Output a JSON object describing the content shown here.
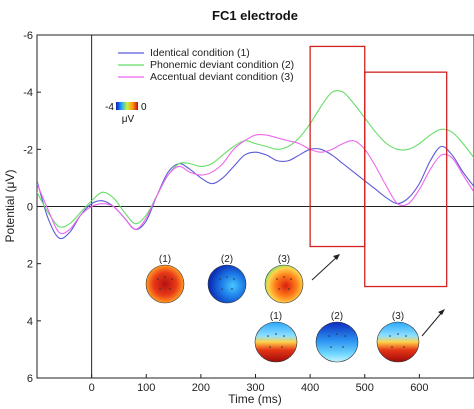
{
  "chart_data": {
    "type": "line",
    "title": "FC1 electrode",
    "xlabel": "Time (ms)",
    "ylabel": "Potential (μV)",
    "xlim": [
      -100,
      700
    ],
    "ylim": [
      -6,
      6
    ],
    "y_inverted": true,
    "x_ticks": [
      0,
      100,
      200,
      300,
      400,
      500,
      600
    ],
    "y_ticks": [
      -6,
      -4,
      -2,
      0,
      2,
      4,
      6
    ],
    "y_tick_labels": [
      "-6",
      "-4",
      "-2",
      "0",
      "2",
      "4",
      "6"
    ],
    "grid": false,
    "legend_position": "top-left",
    "series": [
      {
        "name": "Identical condition (1)",
        "color": "#5a5ad8",
        "x": [
          -100,
          -80,
          -60,
          -40,
          -20,
          0,
          20,
          40,
          60,
          80,
          100,
          120,
          140,
          160,
          180,
          200,
          220,
          240,
          260,
          280,
          300,
          320,
          340,
          360,
          380,
          400,
          420,
          440,
          460,
          480,
          500,
          520,
          540,
          560,
          580,
          600,
          620,
          640,
          660,
          680,
          700
        ],
        "y": [
          -0.9,
          0.4,
          1.1,
          0.9,
          0.3,
          -0.1,
          -0.2,
          0.0,
          0.4,
          0.8,
          0.5,
          -0.4,
          -1.2,
          -1.5,
          -1.3,
          -1.0,
          -0.8,
          -1.0,
          -1.4,
          -1.8,
          -1.9,
          -1.8,
          -1.6,
          -1.6,
          -1.8,
          -2.0,
          -2.0,
          -1.8,
          -1.5,
          -1.2,
          -0.9,
          -0.6,
          -0.3,
          -0.1,
          -0.3,
          -0.8,
          -1.6,
          -2.1,
          -1.8,
          -1.2,
          -0.7
        ]
      },
      {
        "name": "Phonemic deviant condition (2)",
        "color": "#66dd66",
        "x": [
          -100,
          -80,
          -60,
          -40,
          -20,
          0,
          20,
          40,
          60,
          80,
          100,
          120,
          140,
          160,
          180,
          200,
          220,
          240,
          260,
          280,
          300,
          320,
          340,
          360,
          380,
          400,
          420,
          440,
          460,
          480,
          500,
          520,
          540,
          560,
          580,
          600,
          620,
          640,
          660,
          680,
          700
        ],
        "y": [
          -0.5,
          0.2,
          0.7,
          0.6,
          0.2,
          -0.2,
          -0.5,
          -0.3,
          0.2,
          0.6,
          0.3,
          -0.4,
          -1.1,
          -1.5,
          -1.5,
          -1.4,
          -1.5,
          -1.8,
          -2.1,
          -2.3,
          -2.2,
          -2.1,
          -2.0,
          -2.1,
          -2.4,
          -2.9,
          -3.5,
          -4.0,
          -4.0,
          -3.6,
          -3.1,
          -2.6,
          -2.2,
          -2.0,
          -2.0,
          -2.2,
          -2.5,
          -2.7,
          -2.6,
          -2.2,
          -1.7
        ]
      },
      {
        "name": "Accentual deviant condition (3)",
        "color": "#ee66ee",
        "x": [
          -100,
          -80,
          -60,
          -40,
          -20,
          0,
          20,
          40,
          60,
          80,
          100,
          120,
          140,
          160,
          180,
          200,
          220,
          240,
          260,
          280,
          300,
          320,
          340,
          360,
          380,
          400,
          420,
          440,
          460,
          480,
          500,
          520,
          540,
          560,
          580,
          600,
          620,
          640,
          660,
          680,
          700
        ],
        "y": [
          -0.8,
          0.1,
          0.9,
          0.8,
          0.3,
          0.0,
          -0.1,
          0.0,
          0.4,
          0.8,
          0.4,
          -0.4,
          -1.1,
          -1.4,
          -1.2,
          -1.1,
          -1.2,
          -1.5,
          -2.0,
          -2.3,
          -2.5,
          -2.5,
          -2.4,
          -2.3,
          -2.2,
          -2.0,
          -1.9,
          -2.0,
          -2.2,
          -2.3,
          -2.0,
          -1.4,
          -0.7,
          -0.1,
          -0.1,
          -0.6,
          -1.3,
          -1.8,
          -1.7,
          -1.1,
          -0.5
        ]
      }
    ],
    "annotations": {
      "highlight_windows_ms": [
        [
          400,
          500
        ],
        [
          500,
          650
        ]
      ],
      "highlight_color": "#d22222",
      "colorbar": {
        "min_label": "-4",
        "max_label": "0",
        "unit": "μV"
      },
      "topomap_groups": [
        {
          "labels": [
            "(1)",
            "(2)",
            "(3)"
          ],
          "window_ms": [
            400,
            500
          ]
        },
        {
          "labels": [
            "(1)",
            "(2)",
            "(3)"
          ],
          "window_ms": [
            500,
            650
          ]
        }
      ]
    }
  }
}
